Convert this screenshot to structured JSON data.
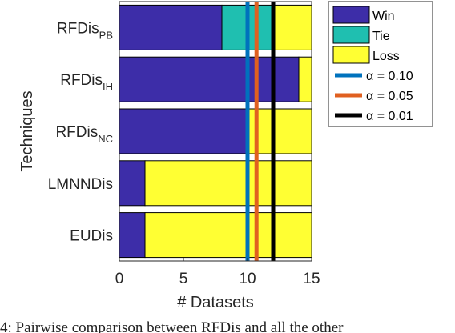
{
  "chart_data": {
    "type": "bar",
    "orientation": "horizontal",
    "stacked": true,
    "categories": [
      {
        "base": "RFDis",
        "sub": "PB"
      },
      {
        "base": "RFDis",
        "sub": "IH"
      },
      {
        "base": "RFDis",
        "sub": "NC"
      },
      {
        "base": "LMNNDis",
        "sub": ""
      },
      {
        "base": "EUDis",
        "sub": ""
      }
    ],
    "series": [
      {
        "name": "Win",
        "color": "#3d2da8",
        "values": [
          8,
          14,
          10,
          2,
          2
        ]
      },
      {
        "name": "Tie",
        "color": "#1fbfb0",
        "values": [
          4,
          0,
          0,
          0,
          0
        ]
      },
      {
        "name": "Loss",
        "color": "#ffff33",
        "values": [
          3,
          1,
          5,
          13,
          13
        ]
      }
    ],
    "reference_lines": [
      {
        "label": "α = 0.10",
        "value": 10,
        "color": "#0072bd"
      },
      {
        "label": "α = 0.05",
        "value": 10.7,
        "color": "#e06020"
      },
      {
        "label": "α = 0.01",
        "value": 12,
        "color": "#000000"
      }
    ],
    "xlabel": "# Datasets",
    "ylabel": "Techniques",
    "xlim": [
      0,
      15
    ],
    "xticks": [
      "0",
      "5",
      "10",
      "15"
    ],
    "legend_position": "right",
    "grid": false
  },
  "caption": "4: Pairwise comparison between RFDis and all the other"
}
